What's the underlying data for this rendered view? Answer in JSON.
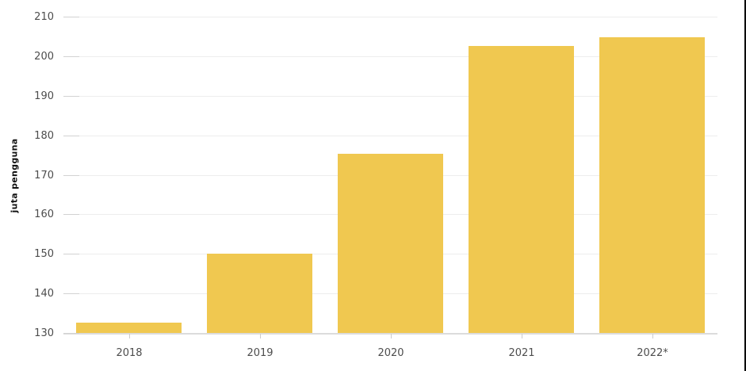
{
  "chart_data": {
    "type": "bar",
    "categories": [
      "2018",
      "2019",
      "2020",
      "2021",
      "2022*"
    ],
    "values": [
      132.7,
      150,
      175.4,
      202.6,
      204.7
    ],
    "title": "",
    "xlabel": "",
    "ylabel": "juta pengguna",
    "ylim": [
      130,
      210
    ],
    "ytick_step": 10,
    "yticks": [
      130,
      140,
      150,
      160,
      170,
      180,
      190,
      200,
      210
    ],
    "grid": true,
    "legend": "none",
    "bar_color": "#F0C850",
    "gridline_color": "#EDEDED",
    "axis_line_color": "#DCDCDC",
    "tick_mark_color": "#CCCCCC",
    "tick_label_color": "#4D4D4D",
    "ylabel_color": "#111111"
  },
  "frame": {
    "right_border_color": "#000000"
  }
}
